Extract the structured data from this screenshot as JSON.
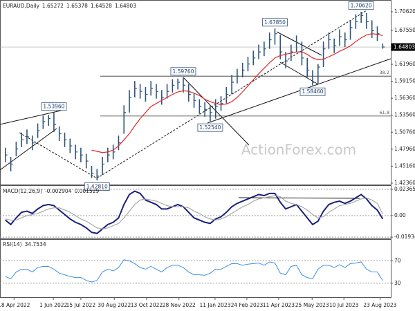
{
  "chart_data": [
    {
      "type": "ohlc",
      "title": "EURAUD,Daily",
      "header_values": [
        1.65272,
        1.65378,
        1.64528,
        1.64803
      ],
      "watermark": "ActionForex.com",
      "color": "#2f5478",
      "high": [
        1.482,
        1.467,
        1.492,
        1.507,
        1.512,
        1.502,
        1.522,
        1.535,
        1.536,
        1.5396,
        1.517,
        1.507,
        1.497,
        1.487,
        1.482,
        1.472,
        1.452,
        1.447,
        1.467,
        1.482,
        1.487,
        1.502,
        1.552,
        1.577,
        1.592,
        1.587,
        1.582,
        1.592,
        1.587,
        1.577,
        1.587,
        1.595,
        1.596,
        1.5976,
        1.587,
        1.572,
        1.562,
        1.557,
        1.552,
        1.562,
        1.567,
        1.582,
        1.602,
        1.612,
        1.622,
        1.632,
        1.642,
        1.652,
        1.657,
        1.672,
        1.6785,
        1.668,
        1.64,
        1.652,
        1.667,
        1.657,
        1.63,
        1.61,
        1.62,
        1.657,
        1.672,
        1.662,
        1.677,
        1.672,
        1.692,
        1.702,
        1.7062,
        1.704,
        1.692,
        1.682,
        1.65378
      ],
      "low": [
        1.458,
        1.443,
        1.468,
        1.483,
        1.488,
        1.478,
        1.498,
        1.513,
        1.518,
        1.508,
        1.493,
        1.483,
        1.473,
        1.463,
        1.458,
        1.448,
        1.432,
        1.4281,
        1.437,
        1.458,
        1.463,
        1.478,
        1.505,
        1.54,
        1.565,
        1.563,
        1.558,
        1.568,
        1.563,
        1.553,
        1.563,
        1.573,
        1.578,
        1.573,
        1.558,
        1.548,
        1.538,
        1.533,
        1.5254,
        1.53,
        1.543,
        1.555,
        1.57,
        1.588,
        1.598,
        1.608,
        1.618,
        1.628,
        1.633,
        1.645,
        1.652,
        1.628,
        1.613,
        1.625,
        1.64,
        1.618,
        1.598,
        1.5846,
        1.588,
        1.615,
        1.645,
        1.638,
        1.65,
        1.648,
        1.66,
        1.678,
        1.688,
        1.678,
        1.663,
        1.658,
        1.64528
      ],
      "close": [
        1.47,
        1.455,
        1.48,
        1.495,
        1.5,
        1.49,
        1.51,
        1.525,
        1.53,
        1.52,
        1.505,
        1.495,
        1.485,
        1.475,
        1.47,
        1.46,
        1.44,
        1.435,
        1.455,
        1.47,
        1.475,
        1.49,
        1.54,
        1.565,
        1.58,
        1.575,
        1.57,
        1.58,
        1.575,
        1.565,
        1.575,
        1.585,
        1.59,
        1.585,
        1.57,
        1.56,
        1.55,
        1.545,
        1.54,
        1.55,
        1.555,
        1.57,
        1.59,
        1.6,
        1.61,
        1.62,
        1.63,
        1.64,
        1.645,
        1.66,
        1.67,
        1.64,
        1.625,
        1.64,
        1.655,
        1.63,
        1.61,
        1.59,
        1.615,
        1.645,
        1.66,
        1.65,
        1.665,
        1.66,
        1.68,
        1.69,
        1.7,
        1.69,
        1.675,
        1.67,
        1.64803
      ],
      "overlay": {
        "color": "#e02828",
        "values": [
          null,
          null,
          null,
          null,
          null,
          null,
          null,
          null,
          null,
          null,
          null,
          null,
          null,
          null,
          null,
          null,
          1.478,
          1.476,
          1.474,
          1.475,
          1.478,
          1.485,
          1.495,
          1.505,
          1.518,
          1.53,
          1.54,
          1.55,
          1.555,
          1.56,
          1.565,
          1.57,
          1.574,
          1.576,
          1.575,
          1.572,
          1.568,
          1.562,
          1.558,
          1.555,
          1.553,
          1.554,
          1.558,
          1.565,
          1.574,
          1.584,
          1.594,
          1.604,
          1.613,
          1.622,
          1.63,
          1.634,
          1.636,
          1.638,
          1.64,
          1.64,
          1.636,
          1.63,
          1.627,
          1.628,
          1.632,
          1.636,
          1.641,
          1.645,
          1.65,
          1.657,
          1.663,
          1.668,
          1.67,
          1.669,
          1.667
        ]
      },
      "annotations": [
        {
          "value": 1.5396,
          "label": "1.53960"
        },
        {
          "value": 1.4281,
          "label": "1.42810"
        },
        {
          "value": 1.5976,
          "label": "1.59760"
        },
        {
          "value": 1.5254,
          "label": "1.52540"
        },
        {
          "value": 1.6785,
          "label": "1.67850"
        },
        {
          "value": 1.5846,
          "label": "1.58460"
        },
        {
          "value": 1.7062,
          "label": "1.70620"
        }
      ],
      "levels": [
        {
          "value": 1.6,
          "label": "38.2"
        },
        {
          "value": 1.5343,
          "label": "61.8"
        }
      ],
      "xlim": [
        0,
        72.5
      ],
      "ylim": [
        1.4213,
        1.7233
      ],
      "yticks": [
        {
          "value": 1.7062,
          "label": "1.70620"
        },
        {
          "value": 1.6755,
          "label": "1.67550"
        },
        {
          "value": 1.6196,
          "label": "1.61960"
        },
        {
          "value": 1.5915,
          "label": "1.59150"
        },
        {
          "value": 1.5636,
          "label": "1.56360"
        },
        {
          "value": 1.5356,
          "label": "1.53560"
        },
        {
          "value": 1.5076,
          "label": "1.50760"
        },
        {
          "value": 1.4796,
          "label": "1.47960"
        },
        {
          "value": 1.4516,
          "label": "1.45160"
        },
        {
          "value": 1.4236,
          "label": "1.42360"
        }
      ]
    },
    {
      "type": "macd",
      "title": "MACD(12,26,9)",
      "header_values": [
        -0.002904,
        0.001529
      ],
      "series": [
        {
          "color": "#1a1f7a",
          "values": [
            -0.004,
            -0.008,
            -0.002,
            0.003,
            0.004,
            0.002,
            0.006,
            0.009,
            0.01,
            0.009,
            0.005,
            0.001,
            -0.003,
            -0.006,
            -0.008,
            -0.011,
            -0.015,
            -0.016,
            -0.012,
            -0.008,
            -0.006,
            -0.002,
            0.01,
            0.019,
            0.022,
            0.02,
            0.014,
            0.012,
            0.01,
            0.006,
            0.006,
            0.008,
            0.01,
            0.008,
            0.003,
            -0.002,
            -0.004,
            -0.006,
            -0.007,
            -0.003,
            -0.001,
            0.003,
            0.008,
            0.011,
            0.013,
            0.015,
            0.017,
            0.019,
            0.018,
            0.02,
            0.02,
            0.012,
            0.006,
            0.008,
            0.01,
            0.004,
            -0.002,
            -0.008,
            -0.005,
            0.004,
            0.01,
            0.012,
            0.013,
            0.011,
            0.013,
            0.016,
            0.019,
            0.015,
            0.009,
            0.005,
            -0.002904
          ]
        },
        {
          "color": "#a8a8a8",
          "values": [
            -0.003,
            -0.004,
            -0.004,
            -0.002,
            0.0,
            0.001,
            0.002,
            0.004,
            0.006,
            0.007,
            0.007,
            0.005,
            0.003,
            0.0,
            -0.003,
            -0.005,
            -0.008,
            -0.011,
            -0.012,
            -0.011,
            -0.009,
            -0.007,
            -0.002,
            0.004,
            0.01,
            0.014,
            0.015,
            0.014,
            0.013,
            0.011,
            0.009,
            0.008,
            0.008,
            0.008,
            0.007,
            0.004,
            0.002,
            -0.001,
            -0.003,
            -0.004,
            -0.003,
            -0.001,
            0.002,
            0.005,
            0.008,
            0.01,
            0.013,
            0.015,
            0.016,
            0.017,
            0.018,
            0.017,
            0.013,
            0.011,
            0.01,
            0.008,
            0.005,
            0.001,
            -0.002,
            -0.001,
            0.003,
            0.006,
            0.009,
            0.01,
            0.011,
            0.013,
            0.015,
            0.016,
            0.014,
            0.011,
            0.001529
          ]
        }
      ],
      "xlim": [
        0,
        72.5
      ],
      "ylim": [
        -0.0205,
        0.0261
      ],
      "yticks": [
        0.023659,
        {
          "value": 0,
          "label": "0.00"
        },
        -0.019343
      ]
    },
    {
      "type": "rsi",
      "title": "RSI(14)",
      "header_values": [
        34.7534
      ],
      "series": [
        {
          "color": "#3d8fe0",
          "values": [
            42,
            38,
            50,
            55,
            55,
            50,
            58,
            60,
            60,
            55,
            48,
            45,
            42,
            40,
            40,
            35,
            32,
            35,
            50,
            55,
            52,
            58,
            72,
            70,
            65,
            58,
            55,
            60,
            55,
            50,
            58,
            62,
            62,
            58,
            50,
            45,
            45,
            44,
            48,
            55,
            55,
            60,
            65,
            65,
            62,
            64,
            65,
            66,
            62,
            68,
            66,
            48,
            45,
            60,
            62,
            45,
            40,
            38,
            55,
            62,
            62,
            58,
            63,
            58,
            65,
            66,
            68,
            55,
            50,
            50,
            34.7534
          ]
        }
      ],
      "xlim": [
        0,
        72.5
      ],
      "ylim": [
        5,
        107.5
      ],
      "yticks": [
        70,
        30
      ],
      "xticks": [
        {
          "value": 2.6,
          "label": "18 Apr 2022"
        },
        {
          "value": 9.9,
          "label": "1 Jun 2022"
        },
        {
          "value": 15,
          "label": "15 Jul 2022"
        },
        {
          "value": 21.2,
          "label": "30 Aug 2022"
        },
        {
          "value": 27.2,
          "label": "13 Oct 2022"
        },
        {
          "value": 33.2,
          "label": "28 Nov 2022"
        },
        {
          "value": 39.9,
          "label": "11 Jan 2023"
        },
        {
          "value": 45.8,
          "label": "24 Feb 2023"
        },
        {
          "value": 51.7,
          "label": "11 Apr 2023"
        },
        {
          "value": 57.9,
          "label": "25 May 2023"
        },
        {
          "value": 63.8,
          "label": "10 Jul 2023"
        },
        {
          "value": 70.5,
          "label": "23 Aug 2023"
        }
      ]
    }
  ]
}
